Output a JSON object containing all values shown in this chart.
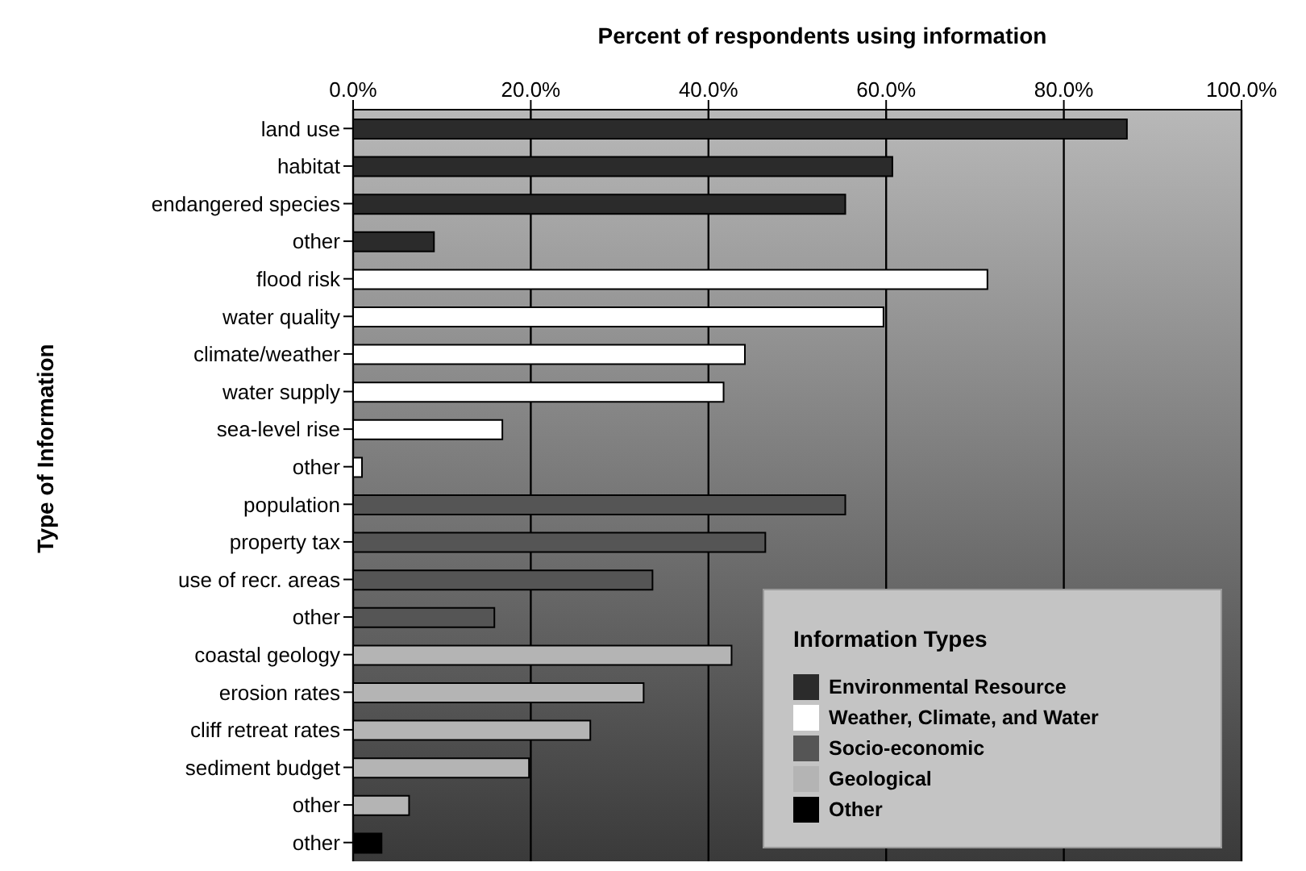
{
  "chart_data": {
    "type": "bar",
    "orientation": "horizontal",
    "stacked": true,
    "xlabel": "Percent of respondents using information",
    "ylabel": "Type of Information",
    "legend_title": "Information Types",
    "legend": "bottom right",
    "grid": "x",
    "categories": [
      "land use",
      "habitat",
      "endangered species",
      "other",
      "flood risk",
      "water quality",
      "climate/weather",
      "water supply",
      "sea-level rise",
      "other",
      "population",
      "property tax",
      "use of recr. areas",
      "other",
      "coastal geology",
      "erosion rates",
      "cliff retreat rates",
      "sediment budget",
      "other",
      "other"
    ],
    "series": [
      {
        "name": "Environmental Resource",
        "color": "#2b2b2b",
        "values": [
          87.1,
          60.7,
          55.4,
          9.1,
          null,
          null,
          null,
          null,
          null,
          null,
          null,
          null,
          null,
          null,
          null,
          null,
          null,
          null,
          null,
          null
        ]
      },
      {
        "name": "Weather, Climate, and Water",
        "color": "#ffffff",
        "values": [
          null,
          null,
          null,
          null,
          71.4,
          59.7,
          44.1,
          41.7,
          16.8,
          1.0,
          null,
          null,
          null,
          null,
          null,
          null,
          null,
          null,
          null,
          null
        ]
      },
      {
        "name": "Socio-economic",
        "color": "#555555",
        "values": [
          null,
          null,
          null,
          null,
          null,
          null,
          null,
          null,
          null,
          null,
          55.4,
          46.4,
          33.7,
          15.9,
          null,
          null,
          null,
          null,
          null,
          null
        ]
      },
      {
        "name": "Geological",
        "color": "#b4b4b4",
        "values": [
          null,
          null,
          null,
          null,
          null,
          null,
          null,
          null,
          null,
          null,
          null,
          null,
          null,
          null,
          42.6,
          32.7,
          26.7,
          19.8,
          6.3,
          null
        ]
      },
      {
        "name": "Other",
        "color": "#000000",
        "values": [
          null,
          null,
          null,
          null,
          null,
          null,
          null,
          null,
          null,
          null,
          null,
          null,
          null,
          null,
          null,
          null,
          null,
          null,
          null,
          3.2
        ]
      }
    ],
    "xlim": [
      0,
      100
    ],
    "xticks": [
      {
        "value": 0,
        "label": "0.0%"
      },
      {
        "value": 20,
        "label": "20.0%"
      },
      {
        "value": 40,
        "label": "40.0%"
      },
      {
        "value": 60,
        "label": "60.0%"
      },
      {
        "value": 80,
        "label": "80.0%"
      },
      {
        "value": 100,
        "label": "100.0%"
      }
    ]
  }
}
